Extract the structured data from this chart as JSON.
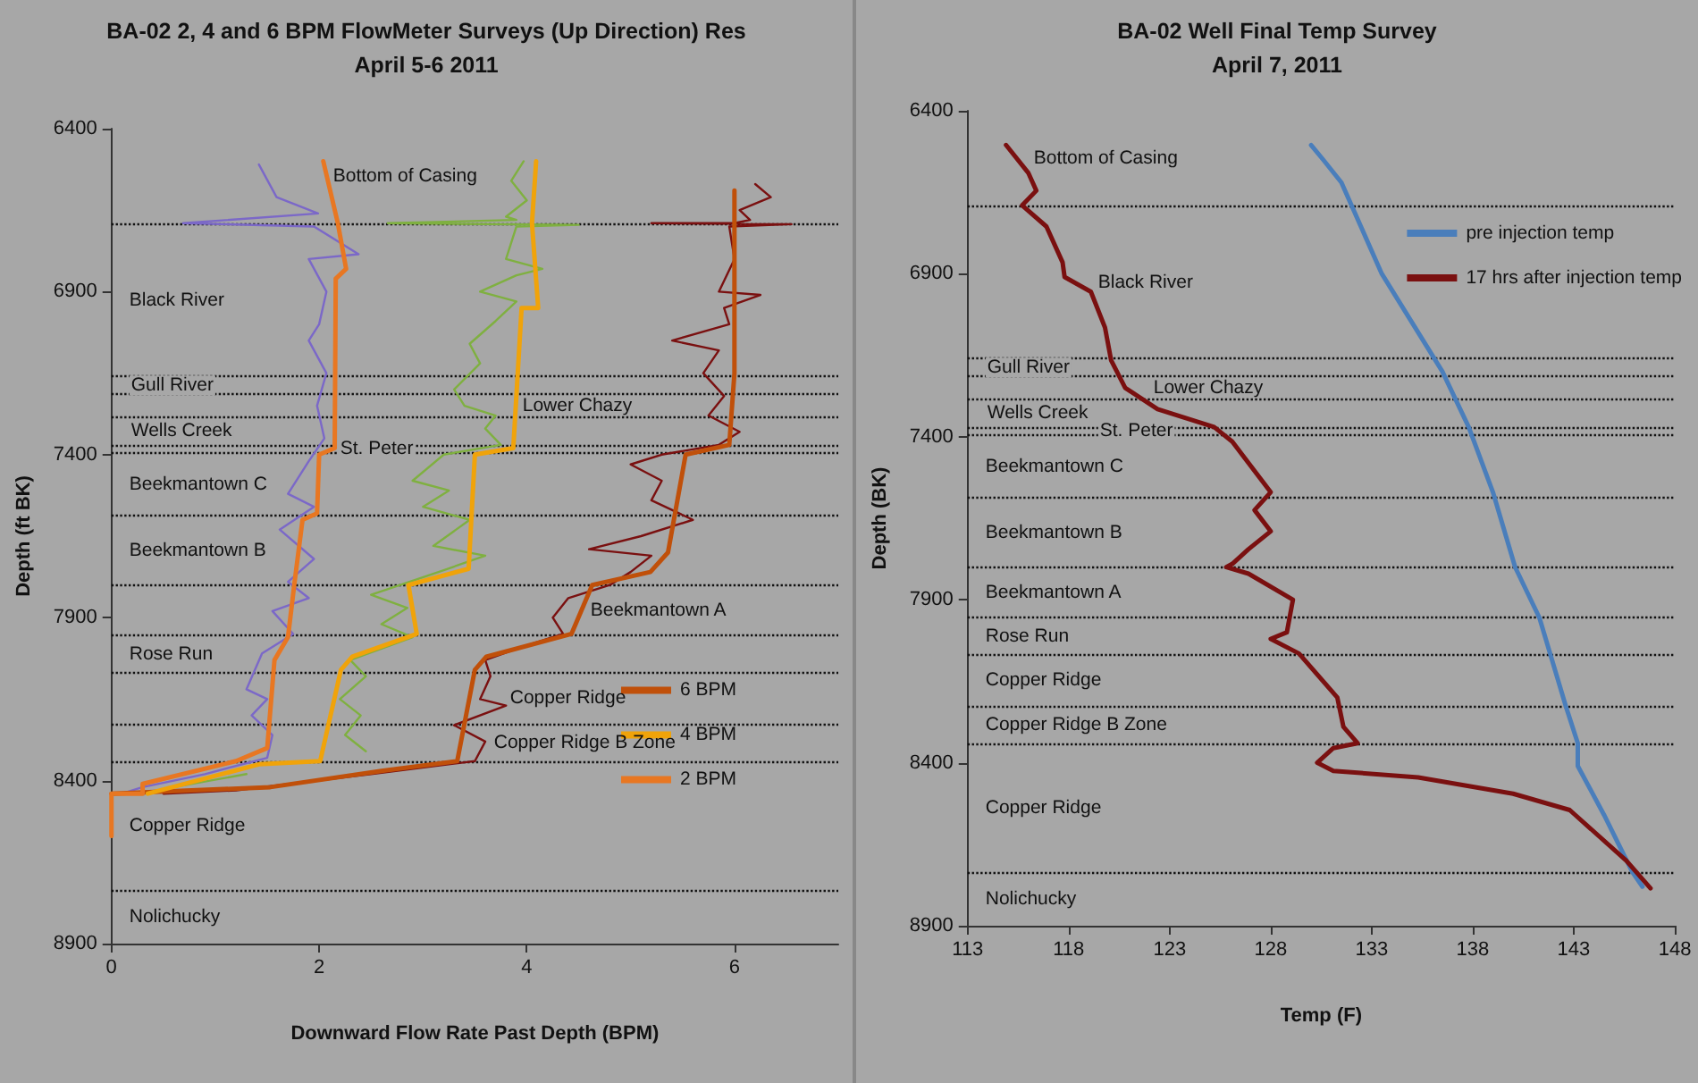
{
  "chart_data": [
    {
      "type": "line",
      "title": "BA-02 2, 4 and 6 BPM FlowMeter Surveys (Up Direction) Res",
      "subtitle": "April 5-6 2011",
      "xlabel": "Downward Flow Rate Past Depth (BPM)",
      "ylabel": "Depth (ft BK)",
      "xlim": [
        0,
        7
      ],
      "xticks": [
        0,
        2,
        4,
        6
      ],
      "ylim": [
        8900,
        6400
      ],
      "yticks": [
        6400,
        6900,
        7400,
        7900,
        8400,
        8900
      ],
      "grid": false,
      "marker": "none",
      "legend": "right",
      "series": [
        {
          "color": "#7b68c8",
          "x": [
            1.42,
            1.59,
            1.99,
            0.69,
            1.95,
            2.38,
            1.9,
            2.07,
            2.0,
            1.9,
            2.07,
            1.98,
            2.05,
            1.9,
            1.7,
            1.95,
            1.62,
            1.95,
            1.7,
            1.9,
            1.55,
            1.75,
            1.45,
            1.3,
            1.5,
            1.35,
            1.55,
            1.5,
            0.9,
            0.3,
            0.1
          ],
          "values": [
            6510,
            6610,
            6660,
            6690,
            6700,
            6785,
            6800,
            6900,
            7000,
            7050,
            7150,
            7250,
            7350,
            7420,
            7520,
            7560,
            7630,
            7720,
            7790,
            7840,
            7880,
            7950,
            8010,
            8120,
            8150,
            8200,
            8260,
            8330,
            8380,
            8420,
            8440
          ]
        },
        {
          "color": "#7fb040",
          "x": [
            3.97,
            3.85,
            4.0,
            3.8,
            3.9,
            2.66,
            4.5,
            3.9,
            3.8,
            4.15,
            3.9,
            3.55,
            3.9,
            3.7,
            3.45,
            3.55,
            3.3,
            3.4,
            3.7,
            3.6,
            3.75,
            3.2,
            2.9,
            3.25,
            3.0,
            3.45,
            3.1,
            3.6,
            3.15,
            2.5,
            2.85,
            2.6,
            2.9,
            2.3,
            2.45,
            2.2,
            2.4,
            2.25,
            2.45,
            1.9,
            1.3,
            0.6,
            0.3
          ],
          "values": [
            6500,
            6560,
            6620,
            6670,
            6680,
            6690,
            6695,
            6700,
            6800,
            6830,
            6850,
            6900,
            6930,
            6990,
            7060,
            7120,
            7200,
            7250,
            7280,
            7320,
            7370,
            7400,
            7480,
            7510,
            7560,
            7600,
            7680,
            7710,
            7760,
            7830,
            7870,
            7920,
            7960,
            8030,
            8080,
            8150,
            8200,
            8260,
            8310,
            null,
            8380,
            8420,
            8440
          ]
        },
        {
          "color": "#7a1010",
          "x": [
            6.2,
            6.35,
            6.05,
            6.15,
            6.0,
            5.2,
            6.55,
            5.95,
            6.0,
            5.85,
            6.25,
            5.9,
            5.95,
            5.4,
            5.85,
            5.7,
            5.9,
            5.75,
            6.05,
            5.85,
            5.3,
            5.0,
            5.3,
            5.2,
            5.6,
            5.1,
            4.6,
            5.2,
            5.0,
            4.8,
            4.4,
            4.25,
            4.35,
            3.95,
            3.6,
            3.65,
            3.55,
            3.8,
            3.3,
            3.6,
            3.5,
            2.5,
            1.2,
            0.5
          ],
          "values": [
            6570,
            6610,
            6650,
            6680,
            6690,
            6690,
            6693,
            6700,
            6800,
            6900,
            6910,
            6950,
            7000,
            7050,
            7080,
            7150,
            7220,
            7280,
            7330,
            7370,
            7400,
            7430,
            7480,
            7540,
            7600,
            7650,
            7690,
            7710,
            7760,
            7800,
            7840,
            7900,
            7950,
            7990,
            8030,
            8080,
            8150,
            8170,
            8230,
            8280,
            8340,
            8380,
            8430,
            8440
          ]
        },
        {
          "name": "6 BPM",
          "color": "#c0500a",
          "x": [
            6.0,
            6.0,
            5.95,
            5.53,
            5.36,
            5.19,
            4.63,
            4.43,
            3.61,
            3.5,
            3.33,
            2.6,
            1.53,
            0
          ],
          "values": [
            6590,
            7150,
            7370,
            7400,
            7700,
            7760,
            7800,
            7950,
            8020,
            8060,
            8340,
            8370,
            8420,
            8440
          ]
        },
        {
          "name": "4 BPM",
          "color": "#f0a30a",
          "x": [
            4.09,
            4.05,
            4.11,
            3.95,
            3.87,
            3.5,
            3.44,
            2.86,
            2.94,
            2.32,
            2.21,
            2.01,
            1.42,
            0.35
          ],
          "values": [
            6500,
            6690,
            6950,
            6950,
            7380,
            7400,
            7750,
            7800,
            7950,
            8020,
            8060,
            8340,
            8350,
            8440
          ]
        },
        {
          "name": "2 BPM",
          "color": "#e87722",
          "x": [
            2.04,
            2.18,
            2.26,
            2.16,
            2.15,
            2.0,
            1.98,
            1.84,
            1.76,
            1.7,
            1.57,
            1.5,
            1.2,
            0.3,
            0.3,
            0,
            0
          ],
          "values": [
            6500,
            6690,
            6830,
            6860,
            7380,
            7400,
            7580,
            7600,
            7800,
            7960,
            8030,
            8300,
            8340,
            8410,
            8440,
            8440,
            8570
          ]
        }
      ],
      "ref_lines": [
        {
          "axis": "y",
          "value": 6690,
          "line_style": "dotted"
        },
        {
          "axis": "y",
          "value": 7160,
          "line_style": "dotted"
        },
        {
          "axis": "y",
          "value": 7215,
          "line_style": "dotted"
        },
        {
          "axis": "y",
          "value": 7285,
          "line_style": "dotted"
        },
        {
          "axis": "y",
          "value": 7370,
          "line_style": "dotted"
        },
        {
          "axis": "y",
          "value": 7395,
          "line_style": "dotted"
        },
        {
          "axis": "y",
          "value": 7585,
          "line_style": "dotted"
        },
        {
          "axis": "y",
          "value": 7800,
          "line_style": "dotted"
        },
        {
          "axis": "y",
          "value": 7955,
          "line_style": "dotted"
        },
        {
          "axis": "y",
          "value": 8070,
          "line_style": "dotted"
        },
        {
          "axis": "y",
          "value": 8225,
          "line_style": "dotted"
        },
        {
          "axis": "y",
          "value": 8340,
          "line_style": "dotted"
        },
        {
          "axis": "y",
          "value": 8735,
          "line_style": "dotted"
        }
      ],
      "annotations": [
        "Bottom of Casing",
        "Black River",
        "Gull River",
        "Lower Chazy",
        "Wells Creek",
        "St. Peter",
        "Beekmantown C",
        "Beekmantown B",
        "Beekmantown A",
        "Rose Run",
        "Copper Ridge",
        "Copper Ridge B Zone",
        "Copper Ridge",
        "Nolichucky"
      ]
    },
    {
      "type": "line",
      "title": "BA-02 Well Final Temp Survey",
      "subtitle": "April 7, 2011",
      "xlabel": "Temp (F)",
      "ylabel": "Depth (BK)",
      "xlim": [
        113,
        148
      ],
      "xticks": [
        113,
        118,
        123,
        128,
        133,
        138,
        143,
        148
      ],
      "ylim": [
        8900,
        6400
      ],
      "yticks": [
        6400,
        6900,
        7400,
        7900,
        8400,
        8900
      ],
      "grid": false,
      "marker": "none",
      "legend": "top right",
      "series": [
        {
          "name": "pre injection temp",
          "color": "#4a7ebb",
          "x": [
            130.0,
            130.6,
            131.5,
            132.0,
            132.5,
            133.5,
            135.0,
            136.5,
            137.8,
            139.0,
            140.1,
            141.3,
            142.6,
            143.2,
            143.2,
            144.5,
            145.9,
            146.4
          ],
          "values": [
            6505,
            6550,
            6620,
            6690,
            6760,
            6900,
            7050,
            7200,
            7370,
            7570,
            7800,
            7955,
            8225,
            8340,
            8410,
            8560,
            8735,
            8780
          ]
        },
        {
          "name": "17 hrs after injection temp",
          "color": "#7a1010",
          "x": [
            114.9,
            116.0,
            116.4,
            115.7,
            116.9,
            117.7,
            117.8,
            119.1,
            119.8,
            120.1,
            120.8,
            122.4,
            125.2,
            126.1,
            128.0,
            127.2,
            128.0,
            126.9,
            126.1,
            125.8,
            126.9,
            129.1,
            128.8,
            128.0,
            129.4,
            131.3,
            131.6,
            132.3,
            131.1,
            130.3,
            131.1,
            135.3,
            140.0,
            142.8,
            145.6,
            146.8
          ],
          "values": [
            6505,
            6590,
            6645,
            6690,
            6755,
            6865,
            6910,
            6955,
            7065,
            7165,
            7250,
            7315,
            7370,
            7415,
            7570,
            7625,
            7690,
            7745,
            7790,
            7800,
            7820,
            7900,
            8000,
            8020,
            8065,
            8200,
            8290,
            8340,
            8355,
            8400,
            8425,
            8445,
            8495,
            8545,
            8700,
            8785
          ]
        }
      ],
      "ref_lines": [
        {
          "axis": "y",
          "value": 6690,
          "line_style": "dotted"
        },
        {
          "axis": "y",
          "value": 7160,
          "line_style": "dotted"
        },
        {
          "axis": "y",
          "value": 7215,
          "line_style": "dotted"
        },
        {
          "axis": "y",
          "value": 7285,
          "line_style": "dotted"
        },
        {
          "axis": "y",
          "value": 7370,
          "line_style": "dotted"
        },
        {
          "axis": "y",
          "value": 7395,
          "line_style": "dotted"
        },
        {
          "axis": "y",
          "value": 7585,
          "line_style": "dotted"
        },
        {
          "axis": "y",
          "value": 7800,
          "line_style": "dotted"
        },
        {
          "axis": "y",
          "value": 7955,
          "line_style": "dotted"
        },
        {
          "axis": "y",
          "value": 8070,
          "line_style": "dotted"
        },
        {
          "axis": "y",
          "value": 8225,
          "line_style": "dotted"
        },
        {
          "axis": "y",
          "value": 8340,
          "line_style": "dotted"
        },
        {
          "axis": "y",
          "value": 8735,
          "line_style": "dotted"
        }
      ],
      "annotations": [
        "Bottom of Casing",
        "Black River",
        "Gull River",
        "Lower Chazy",
        "Wells Creek",
        "St. Peter",
        "Beekmantown C",
        "Beekmantown B",
        "Beekmantown A",
        "Rose Run",
        "Copper Ridge",
        "Copper Ridge B Zone",
        "Copper Ridge",
        "Nolichucky"
      ]
    }
  ]
}
